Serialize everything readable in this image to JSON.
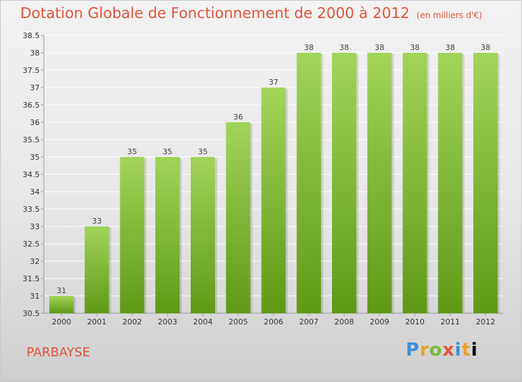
{
  "header": {
    "title": "Dotation Globale de Fonctionnement de 2000 à 2012",
    "unit": "(en milliers d'€)"
  },
  "footer": {
    "place": "PARBAYSE",
    "brand": "Proxiti"
  },
  "colors": {
    "title": "#e2553c",
    "bar_top": "#a2d45a",
    "bar_bottom": "#5e9a16",
    "grid": "#ffffff",
    "axis": "#999999"
  },
  "chart_data": {
    "type": "bar",
    "categories": [
      "2000",
      "2001",
      "2002",
      "2003",
      "2004",
      "2005",
      "2006",
      "2007",
      "2008",
      "2009",
      "2010",
      "2011",
      "2012"
    ],
    "values": [
      31,
      33,
      35,
      35,
      35,
      36,
      37,
      38,
      38,
      38,
      38,
      38,
      38
    ],
    "data_labels": [
      "31",
      "33",
      "35",
      "35",
      "35",
      "36",
      "37",
      "38",
      "38",
      "38",
      "38",
      "38",
      "38"
    ],
    "ylim": [
      30.5,
      38.5
    ],
    "yticks": [
      30.5,
      31,
      31.5,
      32,
      32.5,
      33,
      33.5,
      34,
      34.5,
      35,
      35.5,
      36,
      36.5,
      37,
      37.5,
      38,
      38.5
    ],
    "grid": true
  }
}
